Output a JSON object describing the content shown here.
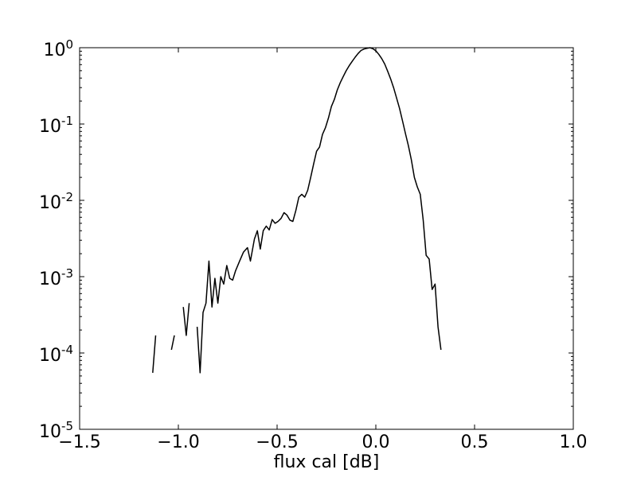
{
  "chart_data": {
    "type": "line",
    "title": "",
    "xlabel": "flux cal [dB]",
    "ylabel": "",
    "xlim": [
      -1.5,
      1.0
    ],
    "ylim_exponent": [
      -5,
      0
    ],
    "y_scale": "log",
    "grid": false,
    "line_color": "#000000",
    "x_ticks": [
      {
        "value": -1.5,
        "label": "−1.5"
      },
      {
        "value": -1.0,
        "label": "−1.0"
      },
      {
        "value": -0.5,
        "label": "−0.5"
      },
      {
        "value": 0.0,
        "label": "0.0"
      },
      {
        "value": 0.5,
        "label": "0.5"
      },
      {
        "value": 1.0,
        "label": "1.0"
      }
    ],
    "y_ticks": [
      {
        "exp": -5,
        "base": "10",
        "sup": "-5"
      },
      {
        "exp": -4,
        "base": "10",
        "sup": "-4"
      },
      {
        "exp": -3,
        "base": "10",
        "sup": "-3"
      },
      {
        "exp": -2,
        "base": "10",
        "sup": "-2"
      },
      {
        "exp": -1,
        "base": "10",
        "sup": "-1"
      },
      {
        "exp": 0,
        "base": "10",
        "sup": "0"
      }
    ],
    "segments": [
      [
        [
          -1.13,
          5.5e-05
        ],
        [
          -1.115,
          0.00017
        ]
      ],
      [
        [
          -1.035,
          0.00011
        ],
        [
          -1.02,
          0.00017
        ]
      ],
      [
        [
          -0.975,
          0.0004
        ],
        [
          -0.96,
          0.00017
        ],
        [
          -0.945,
          0.00045
        ]
      ],
      [
        [
          -0.905,
          0.00022
        ],
        [
          -0.89,
          5.5e-05
        ],
        [
          -0.875,
          0.00034
        ],
        [
          -0.86,
          0.00045
        ],
        [
          -0.845,
          0.0016
        ],
        [
          -0.83,
          0.0004
        ],
        [
          -0.815,
          0.00095
        ],
        [
          -0.8,
          0.00045
        ],
        [
          -0.785,
          0.001
        ],
        [
          -0.77,
          0.0008
        ],
        [
          -0.755,
          0.0014
        ],
        [
          -0.74,
          0.00095
        ],
        [
          -0.725,
          0.0009
        ],
        [
          -0.71,
          0.0012
        ],
        [
          -0.69,
          0.0016
        ],
        [
          -0.67,
          0.0021
        ],
        [
          -0.65,
          0.0024
        ],
        [
          -0.635,
          0.0016
        ],
        [
          -0.615,
          0.0031
        ],
        [
          -0.6,
          0.004
        ],
        [
          -0.585,
          0.0023
        ],
        [
          -0.57,
          0.004
        ],
        [
          -0.555,
          0.0046
        ],
        [
          -0.54,
          0.0041
        ],
        [
          -0.525,
          0.0056
        ],
        [
          -0.51,
          0.005
        ],
        [
          -0.495,
          0.0053
        ],
        [
          -0.48,
          0.0058
        ],
        [
          -0.465,
          0.0069
        ],
        [
          -0.45,
          0.0064
        ],
        [
          -0.435,
          0.0055
        ],
        [
          -0.42,
          0.0053
        ],
        [
          -0.405,
          0.0074
        ],
        [
          -0.39,
          0.011
        ],
        [
          -0.375,
          0.012
        ],
        [
          -0.36,
          0.011
        ],
        [
          -0.345,
          0.0135
        ],
        [
          -0.33,
          0.02
        ],
        [
          -0.315,
          0.03
        ],
        [
          -0.3,
          0.044
        ],
        [
          -0.285,
          0.05
        ],
        [
          -0.27,
          0.073
        ],
        [
          -0.255,
          0.09
        ],
        [
          -0.24,
          0.12
        ],
        [
          -0.225,
          0.17
        ],
        [
          -0.21,
          0.21
        ],
        [
          -0.195,
          0.28
        ],
        [
          -0.18,
          0.35
        ],
        [
          -0.165,
          0.42
        ],
        [
          -0.15,
          0.5
        ],
        [
          -0.135,
          0.58
        ],
        [
          -0.12,
          0.66
        ],
        [
          -0.105,
          0.75
        ],
        [
          -0.09,
          0.84
        ],
        [
          -0.075,
          0.92
        ],
        [
          -0.06,
          0.96
        ],
        [
          -0.045,
          0.98
        ],
        [
          -0.03,
          1.0
        ],
        [
          -0.015,
          0.97
        ],
        [
          0.0,
          0.91
        ],
        [
          0.015,
          0.82
        ],
        [
          0.03,
          0.72
        ],
        [
          0.045,
          0.61
        ],
        [
          0.06,
          0.49
        ],
        [
          0.075,
          0.39
        ],
        [
          0.09,
          0.3
        ],
        [
          0.105,
          0.22
        ],
        [
          0.12,
          0.16
        ],
        [
          0.135,
          0.11
        ],
        [
          0.15,
          0.075
        ],
        [
          0.165,
          0.052
        ],
        [
          0.18,
          0.034
        ],
        [
          0.195,
          0.02
        ],
        [
          0.21,
          0.015
        ],
        [
          0.225,
          0.012
        ],
        [
          0.24,
          0.0055
        ],
        [
          0.255,
          0.0019
        ],
        [
          0.27,
          0.0017
        ],
        [
          0.285,
          0.00068
        ],
        [
          0.3,
          0.0008
        ],
        [
          0.315,
          0.00022
        ],
        [
          0.33,
          0.00011
        ]
      ]
    ]
  }
}
